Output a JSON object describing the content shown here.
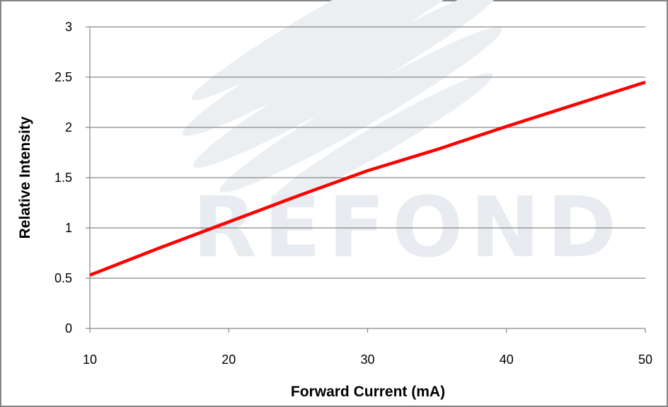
{
  "chart_data": {
    "type": "line",
    "title": "",
    "xlabel": "Forward Current (mA)",
    "ylabel": "Relative Intensity",
    "xlim": [
      10,
      50
    ],
    "ylim": [
      0,
      3
    ],
    "x_ticks": [
      "10",
      "20",
      "30",
      "40",
      "50"
    ],
    "y_ticks": [
      "0",
      "0.5",
      "1",
      "1.5",
      "2",
      "2.5",
      "3"
    ],
    "grid": "horizontal",
    "legend": "none",
    "series": [
      {
        "color": "#ff0000",
        "x": [
          10,
          15,
          20,
          25,
          30,
          35,
          40,
          45,
          50
        ],
        "y": [
          0.53,
          0.8,
          1.06,
          1.32,
          1.57,
          1.78,
          2.01,
          2.23,
          2.45
        ]
      }
    ]
  },
  "watermark": {
    "text": "REFOND",
    "color": "#e8ebef"
  }
}
